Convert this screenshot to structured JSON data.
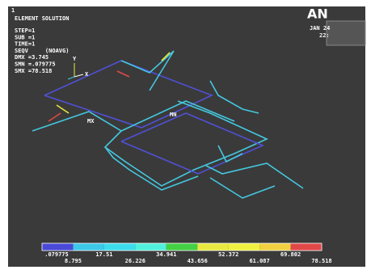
{
  "window_number": "1",
  "title": "ELEMENT SOLUTION",
  "info": [
    "STEP=1",
    "SUB =1",
    "TIME=1",
    "SEQV     (NOAVG)",
    "DMX =3.745",
    "SMN =.079775",
    "SMX =78.518"
  ],
  "logo": "AN",
  "date": "JAN 24",
  "time": "22:",
  "triad": {
    "x": "X",
    "y": "Y"
  },
  "markers": {
    "max": "MX",
    "min": "MN"
  },
  "legend": {
    "colors": [
      "#4a4ad8",
      "#3cc8e8",
      "#3cdcec",
      "#50f0dc",
      "#44d044",
      "#e8e840",
      "#f0f040",
      "#f0d040",
      "#e04848"
    ],
    "labels": [
      ".079775",
      "8.795",
      "17.51",
      "26.226",
      "34.941",
      "43.656",
      "52.372",
      "61.087",
      "69.802",
      "78.518"
    ]
  }
}
